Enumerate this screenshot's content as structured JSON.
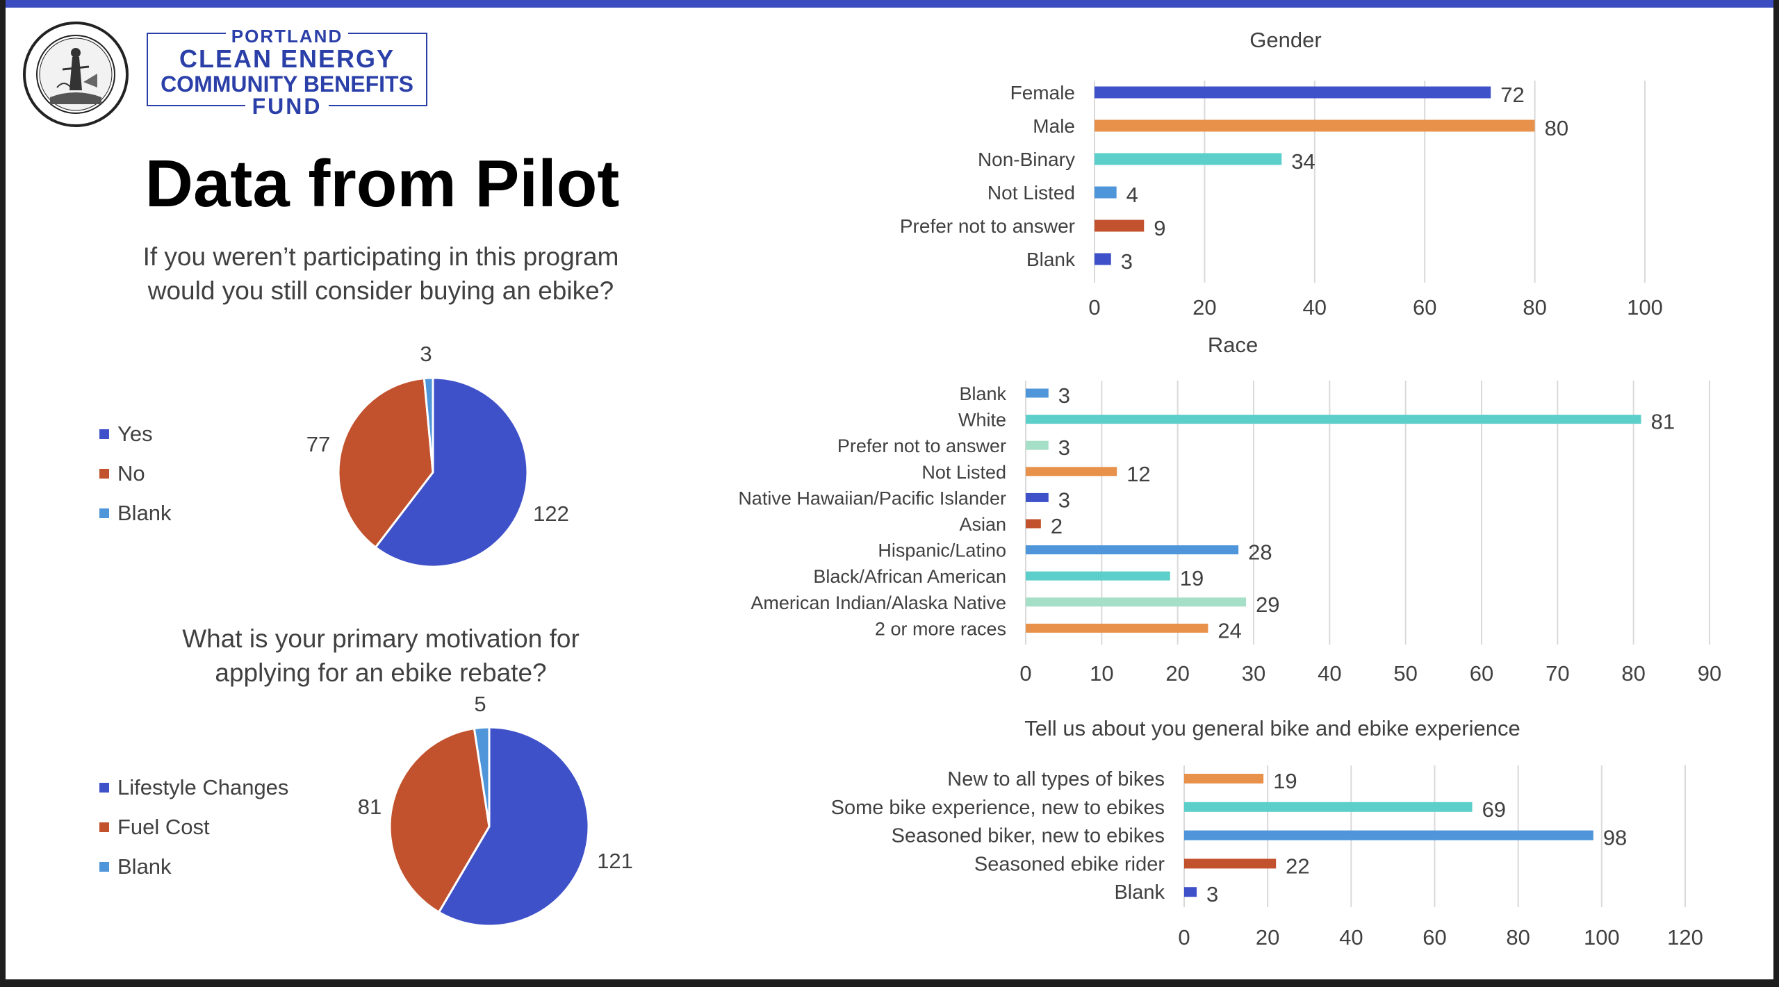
{
  "slide": {
    "title": "Data from Pilot",
    "logo": {
      "line1": "PORTLAND",
      "line2": "CLEAN ENERGY",
      "line3": "COMMUNITY BENEFITS",
      "line4": "FUND"
    },
    "seal_icon": "city-of-portland-oregon-seal",
    "accent_color": "#3b4cc0"
  },
  "colors": {
    "blue": "#3f51c8",
    "orange": "#e8914a",
    "teal": "#5ccfca",
    "lightblue": "#4e95d9",
    "red": "#c2512d",
    "mint": "#a6dfc7"
  },
  "chart_data": [
    {
      "id": "consider",
      "type": "pie",
      "title": "If you weren’t participating in this program would you still consider buying an ebike?",
      "categories": [
        "Yes",
        "No",
        "Blank"
      ],
      "values": [
        122,
        77,
        3
      ],
      "colors": [
        "#3f51c8",
        "#c2512d",
        "#4e95d9"
      ]
    },
    {
      "id": "motivation",
      "type": "pie",
      "title": "What is your primary motivation for applying for an ebike rebate?",
      "categories": [
        "Lifestyle Changes",
        "Fuel Cost",
        "Blank"
      ],
      "values": [
        121,
        81,
        5
      ],
      "colors": [
        "#3f51c8",
        "#c2512d",
        "#4e95d9"
      ]
    },
    {
      "id": "gender",
      "type": "bar",
      "orientation": "horizontal",
      "title": "Gender",
      "categories": [
        "Female",
        "Male",
        "Non-Binary",
        "Not Listed",
        "Prefer not to answer",
        "Blank"
      ],
      "values": [
        72,
        80,
        34,
        4,
        9,
        3
      ],
      "colors": [
        "#3f51c8",
        "#e8914a",
        "#5ccfca",
        "#4e95d9",
        "#c2512d",
        "#3f51c8"
      ],
      "xlim": [
        0,
        100
      ],
      "ticks": [
        0,
        20,
        40,
        60,
        80,
        100
      ],
      "grid": true
    },
    {
      "id": "race",
      "type": "bar",
      "orientation": "horizontal",
      "title": "Race",
      "categories": [
        "Blank",
        "White",
        "Prefer not to answer",
        "Not Listed",
        "Native Hawaiian/Pacific Islander",
        "Asian",
        "Hispanic/Latino",
        "Black/African American",
        "American Indian/Alaska Native",
        "2 or more races"
      ],
      "values": [
        3,
        81,
        3,
        12,
        3,
        2,
        28,
        19,
        29,
        24
      ],
      "colors": [
        "#4e95d9",
        "#5ccfca",
        "#a6dfc7",
        "#e8914a",
        "#3f51c8",
        "#c2512d",
        "#4e95d9",
        "#5ccfca",
        "#a6dfc7",
        "#e8914a"
      ],
      "xlim": [
        0,
        90
      ],
      "ticks": [
        0,
        10,
        20,
        30,
        40,
        50,
        60,
        70,
        80,
        90
      ],
      "grid": true
    },
    {
      "id": "experience",
      "type": "bar",
      "orientation": "horizontal",
      "title": "Tell us about you general bike and ebike experience",
      "categories": [
        "New to all types of bikes",
        "Some bike experience, new to ebikes",
        "Seasoned biker, new to ebikes",
        "Seasoned ebike rider",
        "Blank"
      ],
      "values": [
        19,
        69,
        98,
        22,
        3
      ],
      "colors": [
        "#e8914a",
        "#5ccfca",
        "#4e95d9",
        "#c2512d",
        "#3f51c8"
      ],
      "xlim": [
        0,
        120
      ],
      "ticks": [
        0,
        20,
        40,
        60,
        80,
        100,
        120
      ],
      "grid": true
    }
  ]
}
